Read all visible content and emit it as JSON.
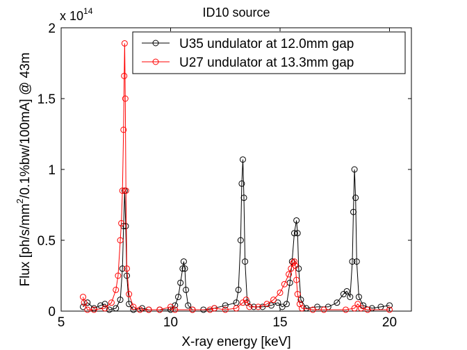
{
  "chart_data": {
    "type": "line",
    "title": "ID10 source",
    "xlabel": "X-ray energy [keV]",
    "ylabel_parts": [
      "Flux [ph/s/mm",
      "2",
      "/0.1%bw/100mA] @ 43m"
    ],
    "y_multiplier": {
      "base": "x 10",
      "exponent": "14"
    },
    "xlim": [
      5,
      21
    ],
    "ylim": [
      0,
      2
    ],
    "xticks": [
      5,
      10,
      15,
      20
    ],
    "xtick_labels": [
      "5",
      "10",
      "15",
      "20"
    ],
    "yticks": [
      0,
      0.5,
      1,
      1.5,
      2
    ],
    "ytick_labels": [
      "0",
      "0.5",
      "1",
      "1.5",
      "2"
    ],
    "grid": false,
    "legend_position": "top-right",
    "series": [
      {
        "name": "U35 undulator at 12.0mm gap",
        "color": "#000000",
        "marker": "circle",
        "x": [
          6.0,
          6.2,
          6.5,
          6.8,
          7.0,
          7.2,
          7.5,
          7.7,
          7.8,
          7.85,
          7.9,
          7.95,
          8.0,
          8.1,
          8.3,
          8.7,
          9.0,
          9.5,
          10.0,
          10.2,
          10.35,
          10.45,
          10.55,
          10.6,
          10.65,
          10.7,
          10.8,
          11.0,
          11.5,
          12.0,
          12.5,
          13.0,
          13.1,
          13.2,
          13.25,
          13.3,
          13.35,
          13.4,
          13.5,
          13.8,
          14.2,
          14.6,
          14.9,
          15.1,
          15.3,
          15.45,
          15.55,
          15.65,
          15.75,
          15.8,
          15.85,
          15.95,
          16.2,
          16.7,
          17.2,
          17.6,
          17.9,
          18.05,
          18.2,
          18.3,
          18.35,
          18.4,
          18.45,
          18.5,
          18.6,
          18.8,
          19.2,
          19.6,
          20.0
        ],
        "y": [
          0.03,
          0.06,
          0.02,
          0.04,
          0.05,
          0.01,
          0.02,
          0.08,
          0.3,
          0.6,
          0.85,
          0.6,
          0.25,
          0.05,
          0.01,
          0.02,
          0.01,
          0.01,
          0.01,
          0.04,
          0.1,
          0.2,
          0.3,
          0.35,
          0.3,
          0.15,
          0.04,
          0.01,
          0.01,
          0.02,
          0.04,
          0.06,
          0.15,
          0.5,
          0.9,
          1.07,
          0.8,
          0.35,
          0.06,
          0.03,
          0.03,
          0.04,
          0.06,
          0.03,
          0.05,
          0.2,
          0.35,
          0.55,
          0.64,
          0.55,
          0.3,
          0.08,
          0.02,
          0.03,
          0.03,
          0.06,
          0.12,
          0.14,
          0.1,
          0.35,
          0.7,
          1.0,
          0.8,
          0.35,
          0.1,
          0.04,
          0.02,
          0.03,
          0.04
        ]
      },
      {
        "name": "U27 undulator at 13.3mm gap",
        "color": "#ff0000",
        "marker": "circle",
        "x": [
          6.0,
          6.05,
          6.2,
          6.5,
          7.0,
          7.3,
          7.5,
          7.6,
          7.7,
          7.75,
          7.8,
          7.85,
          7.88,
          7.9,
          7.93,
          7.96,
          8.0,
          8.1,
          8.3,
          8.6,
          9.0,
          9.5,
          10.0,
          10.2,
          11.0,
          11.8,
          12.0,
          12.5,
          13.0,
          13.3,
          13.45,
          13.6,
          14.0,
          14.4,
          14.7,
          15.0,
          15.2,
          15.4,
          15.5,
          15.6,
          15.65,
          15.7,
          15.75,
          15.8,
          15.9,
          16.0,
          16.5,
          17.0,
          18.0,
          18.4,
          18.55,
          18.7,
          19.0,
          20.0
        ],
        "y": [
          0.1,
          0.06,
          0.01,
          0.01,
          0.02,
          0.06,
          0.15,
          0.25,
          0.5,
          0.62,
          0.85,
          1.28,
          1.66,
          1.89,
          1.5,
          0.85,
          0.3,
          0.12,
          0.03,
          0.01,
          0.01,
          0.01,
          0.03,
          0.01,
          0.01,
          0.01,
          0.02,
          0.01,
          0.02,
          0.06,
          0.08,
          0.03,
          0.03,
          0.05,
          0.08,
          0.13,
          0.19,
          0.26,
          0.3,
          0.34,
          0.35,
          0.32,
          0.22,
          0.12,
          0.05,
          0.02,
          0.01,
          0.01,
          0.01,
          0.02,
          0.05,
          0.02,
          0.01,
          0.01
        ]
      }
    ]
  }
}
